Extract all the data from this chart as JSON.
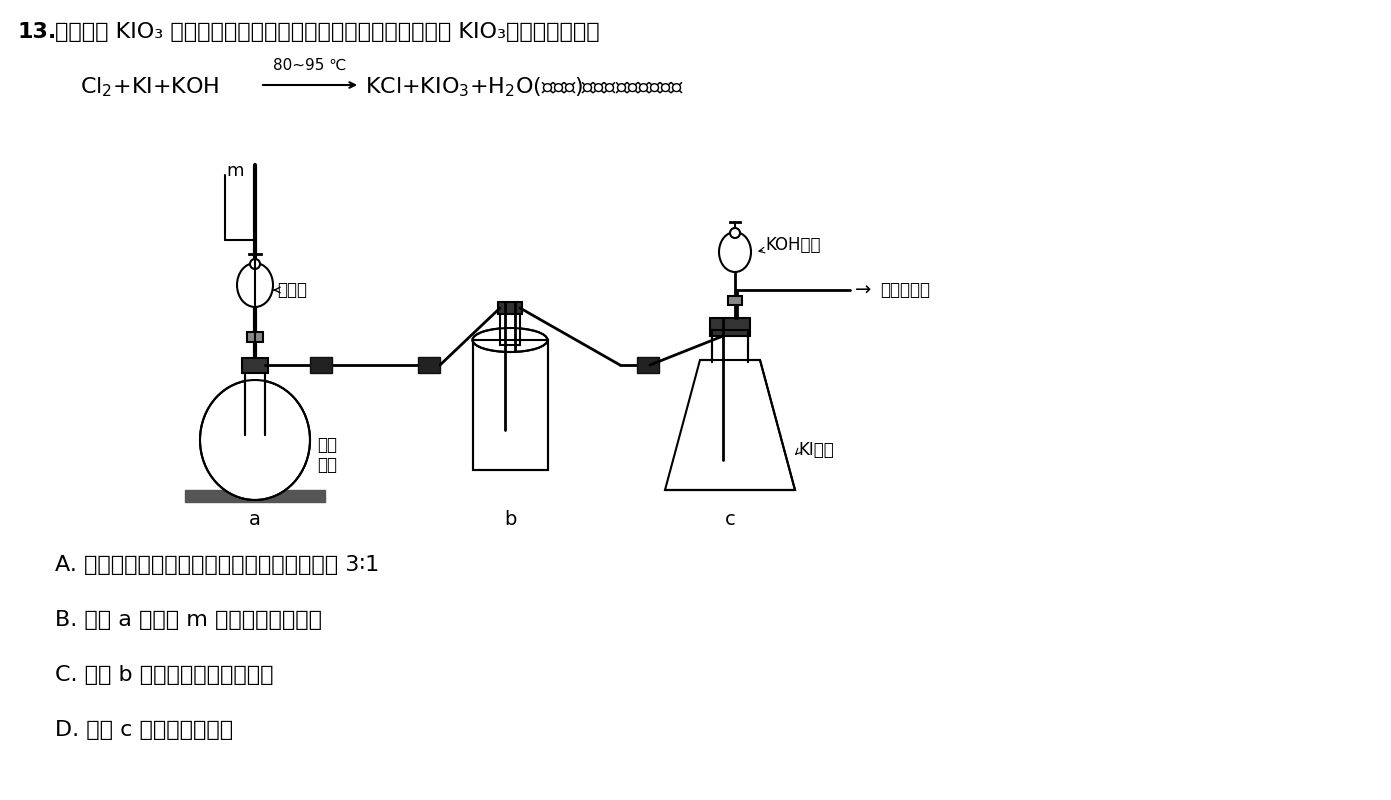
{
  "background_color": "#ffffff",
  "title_number": "13.",
  "title_text": "食盐中加 KIO₃ 可预防碘缺乏症，某研究小组利用如图装置制取 KIO₃，其反应原理为",
  "reaction_line": "Cl₂+KI+KOH →KCl+KIO₃+H₂O(未配平)。下列说法错误的是",
  "reaction_condition": "80~95 ℃",
  "options": [
    "A. 该反应中氧化剂与还原剂的物质的量之比为 3∶1",
    "B. 装置 a 中导管 m 的作用为平衡气压",
    "C. 装置 b 中盛放的试剂为浓硫酸",
    "D. 装置 c 可采用水浴加热"
  ],
  "apparatus_labels": {
    "a": "a",
    "b": "b",
    "c": "c",
    "m": "m",
    "nong_yan_suan": "浓盐酸",
    "gao_meng_suan_jia": "高锰\n酸钾",
    "KOH": "KOH溶液",
    "KI": "KI溶液",
    "tail_gas": "接尾气装置"
  },
  "text_color": "#000000",
  "line_color": "#000000"
}
